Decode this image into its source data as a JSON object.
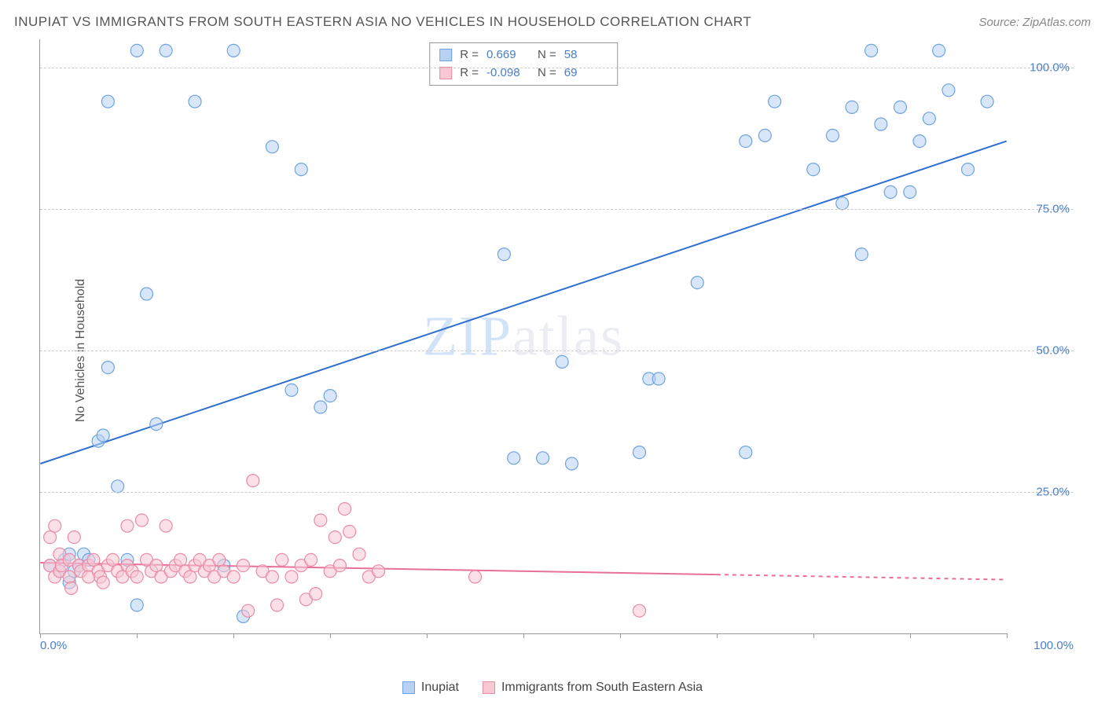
{
  "title": "INUPIAT VS IMMIGRANTS FROM SOUTH EASTERN ASIA NO VEHICLES IN HOUSEHOLD CORRELATION CHART",
  "source_label": "Source: ZipAtlas.com",
  "ylabel": "No Vehicles in Household",
  "watermark": "ZIPatlas",
  "chart": {
    "type": "scatter",
    "xlim": [
      0,
      100
    ],
    "ylim": [
      0,
      105
    ],
    "yticks": [
      25,
      50,
      75,
      100
    ],
    "ytick_labels": [
      "25.0%",
      "50.0%",
      "75.0%",
      "100.0%"
    ],
    "xtick_left": "0.0%",
    "xtick_right": "100.0%",
    "xtick_marks": [
      0,
      10,
      20,
      30,
      40,
      50,
      60,
      70,
      80,
      90,
      100
    ],
    "grid_color": "#cccccc",
    "axis_color": "#999999",
    "tick_text_color": "#4a7ec9",
    "marker_radius": 8,
    "marker_opacity": 0.55,
    "marker_stroke_width": 1.2,
    "series": [
      {
        "name": "Inupiat",
        "color_fill": "#b7d2f3",
        "color_stroke": "#6fa3e0",
        "line_color": "#2f6fd0",
        "line_width": 2,
        "R": "0.669",
        "N": "58",
        "trend": {
          "x1": 0,
          "y1": 30,
          "x2": 100,
          "y2": 87
        },
        "points": [
          [
            1,
            12
          ],
          [
            2,
            11
          ],
          [
            2.5,
            13
          ],
          [
            3,
            9
          ],
          [
            3,
            14
          ],
          [
            3.5,
            11
          ],
          [
            4,
            12
          ],
          [
            4.5,
            14
          ],
          [
            5,
            13
          ],
          [
            6,
            34
          ],
          [
            6.5,
            35
          ],
          [
            7,
            47
          ],
          [
            7,
            94
          ],
          [
            8,
            26
          ],
          [
            9,
            13
          ],
          [
            10,
            5
          ],
          [
            10,
            103
          ],
          [
            11,
            60
          ],
          [
            12,
            37
          ],
          [
            13,
            103
          ],
          [
            16,
            94
          ],
          [
            19,
            12
          ],
          [
            20,
            103
          ],
          [
            21,
            3
          ],
          [
            24,
            86
          ],
          [
            26,
            43
          ],
          [
            27,
            82
          ],
          [
            29,
            40
          ],
          [
            30,
            42
          ],
          [
            48,
            67
          ],
          [
            49,
            31
          ],
          [
            52,
            31
          ],
          [
            54,
            48
          ],
          [
            55,
            30
          ],
          [
            62,
            32
          ],
          [
            63,
            45
          ],
          [
            64,
            45
          ],
          [
            68,
            62
          ],
          [
            73,
            87
          ],
          [
            73,
            32
          ],
          [
            75,
            88
          ],
          [
            76,
            94
          ],
          [
            80,
            82
          ],
          [
            82,
            88
          ],
          [
            83,
            76
          ],
          [
            84,
            93
          ],
          [
            85,
            67
          ],
          [
            86,
            103
          ],
          [
            87,
            90
          ],
          [
            88,
            78
          ],
          [
            89,
            93
          ],
          [
            90,
            78
          ],
          [
            91,
            87
          ],
          [
            92,
            91
          ],
          [
            93,
            103
          ],
          [
            94,
            96
          ],
          [
            96,
            82
          ],
          [
            98,
            94
          ]
        ]
      },
      {
        "name": "Immigrants from South Eastern Asia",
        "color_fill": "#f8c9d4",
        "color_stroke": "#e98ba5",
        "line_color": "#e77099",
        "line_width": 2,
        "R": "-0.098",
        "N": "69",
        "trend": {
          "x1": 0,
          "y1": 12.5,
          "x2": 100,
          "y2": 9.5
        },
        "trend_dash_after": 70,
        "points": [
          [
            1,
            12
          ],
          [
            1,
            17
          ],
          [
            1.5,
            19
          ],
          [
            1.5,
            10
          ],
          [
            2,
            11
          ],
          [
            2,
            14
          ],
          [
            2.2,
            12
          ],
          [
            3,
            13
          ],
          [
            3,
            10
          ],
          [
            3.2,
            8
          ],
          [
            3.5,
            17
          ],
          [
            4,
            12
          ],
          [
            4.2,
            11
          ],
          [
            5,
            12
          ],
          [
            5,
            10
          ],
          [
            5.5,
            13
          ],
          [
            6,
            11
          ],
          [
            6.2,
            10
          ],
          [
            6.5,
            9
          ],
          [
            7,
            12
          ],
          [
            7.5,
            13
          ],
          [
            8,
            11
          ],
          [
            8.5,
            10
          ],
          [
            9,
            12
          ],
          [
            9,
            19
          ],
          [
            9.5,
            11
          ],
          [
            10,
            10
          ],
          [
            10.5,
            20
          ],
          [
            11,
            13
          ],
          [
            11.5,
            11
          ],
          [
            12,
            12
          ],
          [
            12.5,
            10
          ],
          [
            13,
            19
          ],
          [
            13.5,
            11
          ],
          [
            14,
            12
          ],
          [
            14.5,
            13
          ],
          [
            15,
            11
          ],
          [
            15.5,
            10
          ],
          [
            16,
            12
          ],
          [
            16.5,
            13
          ],
          [
            17,
            11
          ],
          [
            17.5,
            12
          ],
          [
            18,
            10
          ],
          [
            18.5,
            13
          ],
          [
            19,
            11
          ],
          [
            20,
            10
          ],
          [
            21,
            12
          ],
          [
            21.5,
            4
          ],
          [
            22,
            27
          ],
          [
            23,
            11
          ],
          [
            24,
            10
          ],
          [
            24.5,
            5
          ],
          [
            25,
            13
          ],
          [
            26,
            10
          ],
          [
            27,
            12
          ],
          [
            27.5,
            6
          ],
          [
            28,
            13
          ],
          [
            28.5,
            7
          ],
          [
            29,
            20
          ],
          [
            30,
            11
          ],
          [
            30.5,
            17
          ],
          [
            31,
            12
          ],
          [
            31.5,
            22
          ],
          [
            32,
            18
          ],
          [
            33,
            14
          ],
          [
            34,
            10
          ],
          [
            35,
            11
          ],
          [
            45,
            10
          ],
          [
            62,
            4
          ]
        ]
      }
    ]
  },
  "legend": {
    "items": [
      {
        "label": "Inupiat",
        "fill": "#b7d2f3",
        "stroke": "#6fa3e0"
      },
      {
        "label": "Immigrants from South Eastern Asia",
        "fill": "#f8c9d4",
        "stroke": "#e98ba5"
      }
    ]
  }
}
